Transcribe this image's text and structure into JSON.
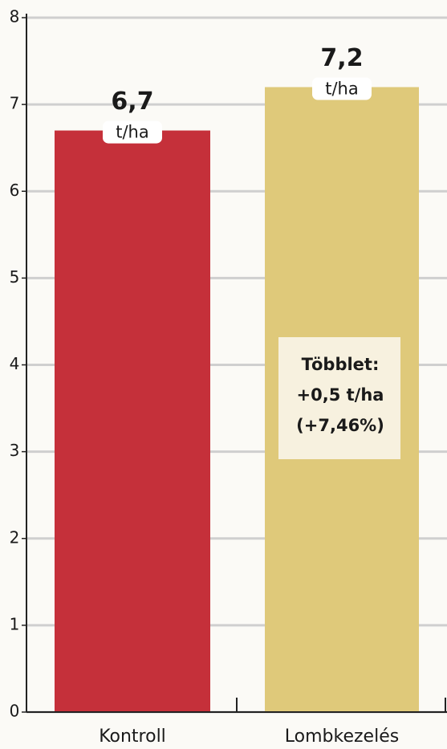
{
  "chart_data": {
    "type": "bar",
    "categories": [
      "Kontroll",
      "Lombkezelés"
    ],
    "values": [
      6.7,
      7.2
    ],
    "value_labels": [
      "6,7",
      "7,2"
    ],
    "unit": "t/ha",
    "colors": [
      "#c5303a",
      "#dfc97a"
    ],
    "ylim": [
      0,
      8
    ],
    "yticks": [
      0,
      1,
      2,
      3,
      4,
      5,
      6,
      7,
      8
    ],
    "grid": true,
    "annotation": [
      "Többlet:",
      "+0,5 t/ha",
      "(+7,46%)"
    ]
  }
}
